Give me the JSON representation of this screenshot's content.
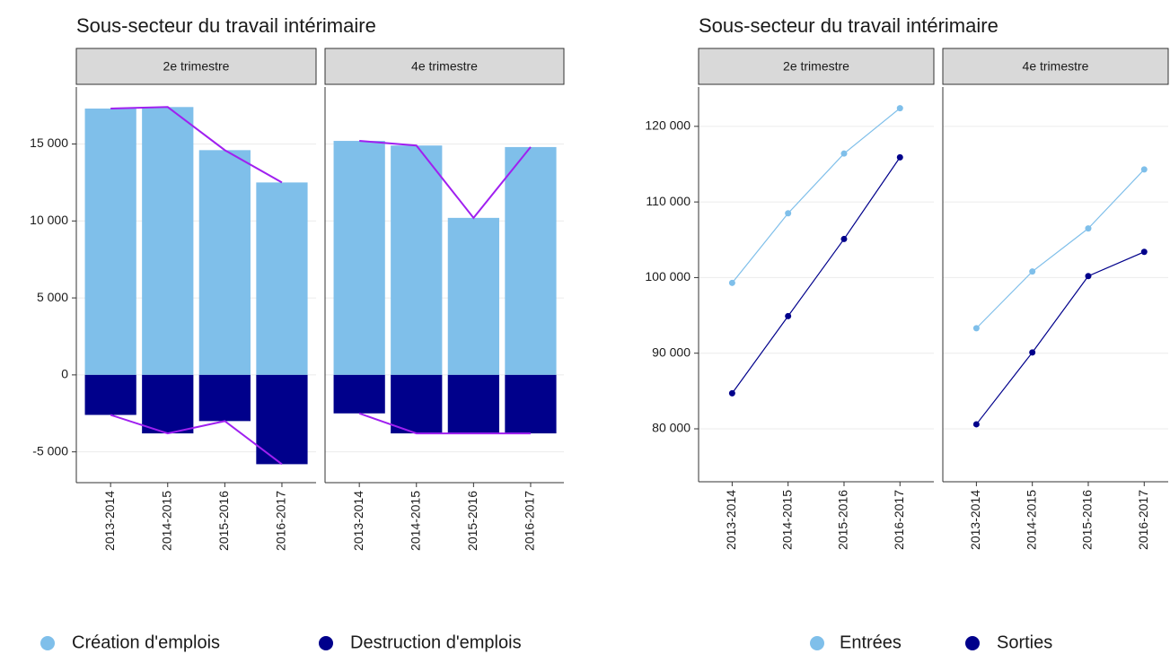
{
  "chart_data": [
    {
      "type": "bar",
      "title": "Sous-secteur du travail intérimaire",
      "facets": [
        "2e trimestre",
        "4e trimestre"
      ],
      "categories": [
        "2013-2014",
        "2014-2015",
        "2015-2016",
        "2016-2017"
      ],
      "series": [
        {
          "name": "Création d'emplois",
          "color": "#7fbfea",
          "values": [
            [
              17300,
              17400,
              14600,
              12500
            ],
            [
              15200,
              14900,
              10200,
              14800
            ]
          ]
        },
        {
          "name": "Destruction d'emplois",
          "color": "#00008b",
          "values": [
            [
              -2600,
              -3800,
              -3000,
              -5800
            ],
            [
              -2500,
              -3800,
              -3800,
              -3800
            ]
          ]
        }
      ],
      "line_color": "#a020f0",
      "ylim": [
        -7000,
        18700
      ],
      "yticks": [
        {
          "value": -5000,
          "label": "-5 000"
        },
        0,
        {
          "value": 5000,
          "label": "5 000"
        },
        {
          "value": 10000,
          "label": "10 000"
        },
        {
          "value": 15000,
          "label": "15 000"
        }
      ],
      "grid": true,
      "legend": "bottom"
    },
    {
      "type": "line",
      "title": "Sous-secteur du travail intérimaire",
      "facets": [
        "2e trimestre",
        "4e trimestre"
      ],
      "categories": [
        "2013-2014",
        "2014-2015",
        "2015-2016",
        "2016-2017"
      ],
      "series": [
        {
          "name": "Entrées",
          "color": "#7fbfea",
          "values": [
            [
              99300,
              108500,
              116400,
              122400
            ],
            [
              93300,
              100800,
              106500,
              114300
            ]
          ]
        },
        {
          "name": "Sorties",
          "color": "#00008b",
          "values": [
            [
              84700,
              94900,
              105100,
              115900
            ],
            [
              80600,
              90100,
              100200,
              103400
            ]
          ]
        }
      ],
      "ylim": [
        73000,
        125200
      ],
      "yticks": [
        {
          "value": 80000,
          "label": "80 000"
        },
        {
          "value": 90000,
          "label": "90 000"
        },
        {
          "value": 100000,
          "label": "100 000"
        },
        {
          "value": 110000,
          "label": "110 000"
        },
        {
          "value": 120000,
          "label": "120 000"
        }
      ],
      "grid": true,
      "legend": "bottom"
    }
  ]
}
